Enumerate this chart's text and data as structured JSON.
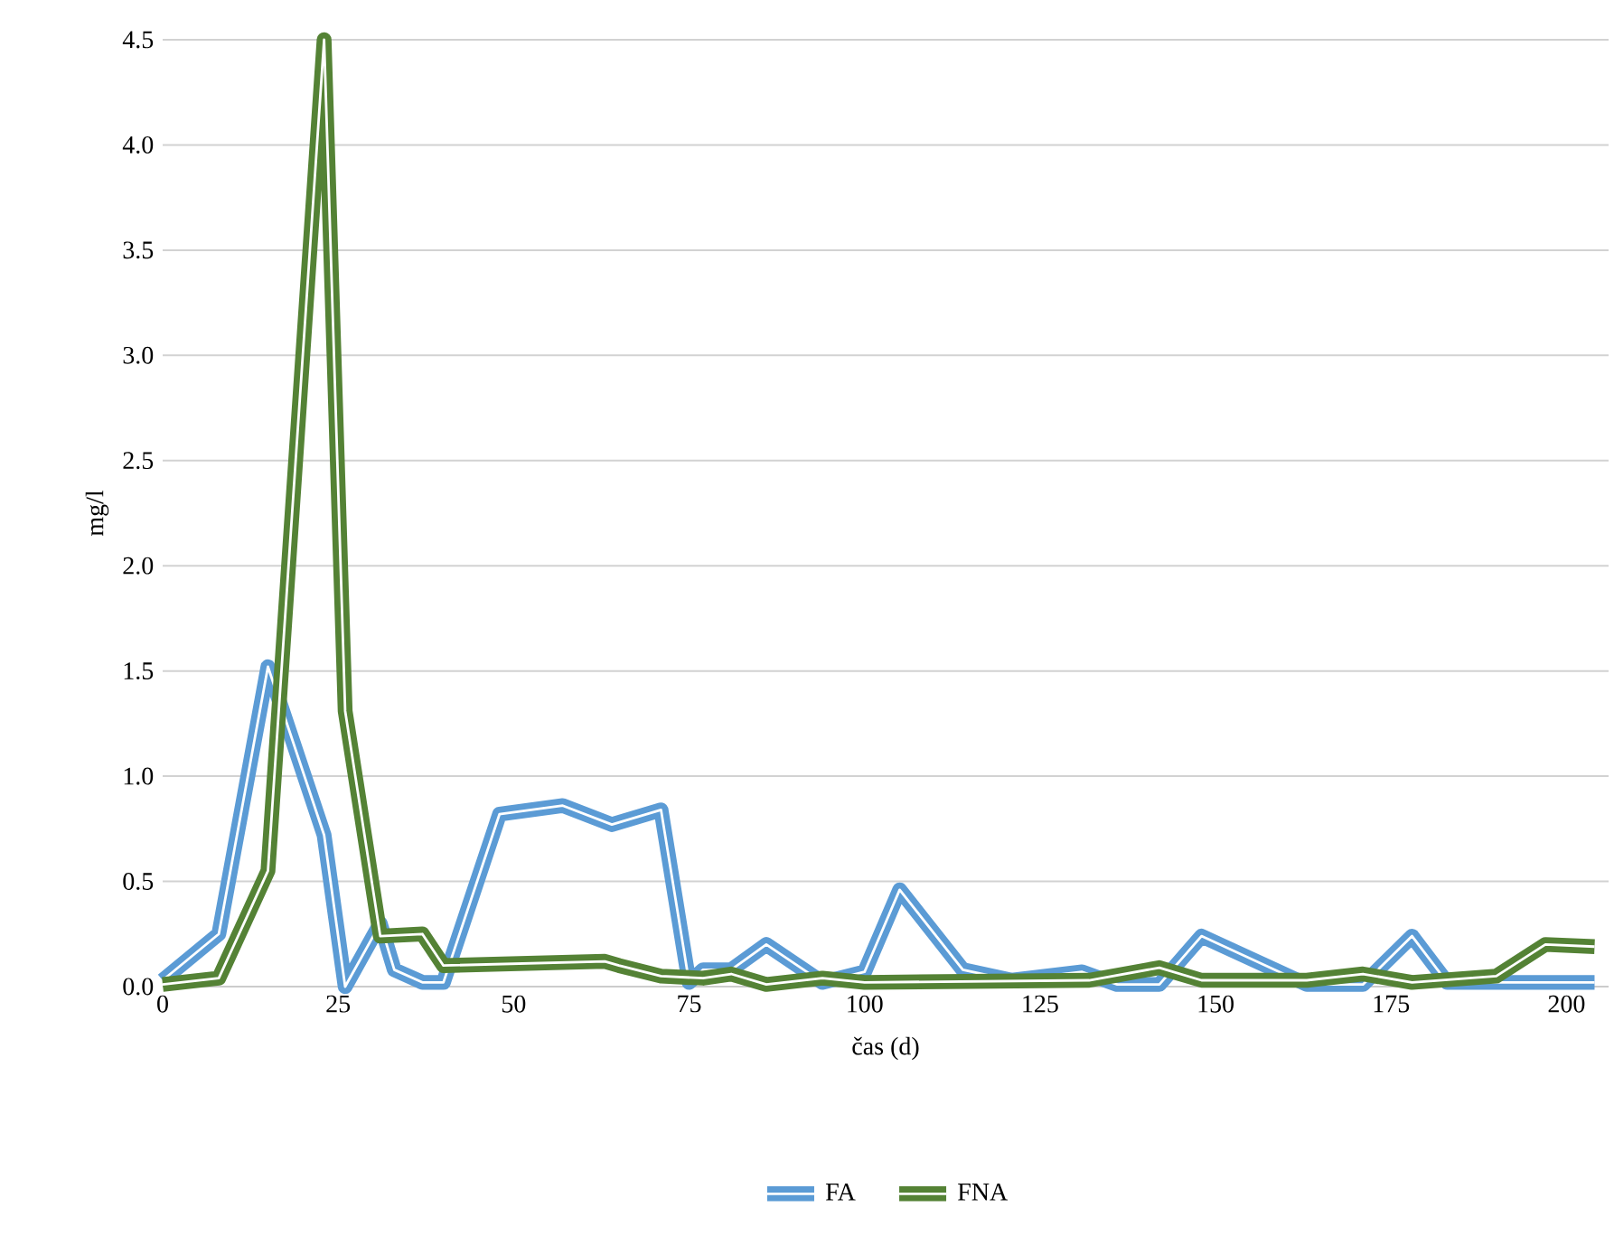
{
  "chart_data": {
    "type": "line",
    "xlabel": "čas (d)",
    "ylabel": "mg/l",
    "xlim": [
      0,
      206
    ],
    "ylim": [
      0,
      4.5
    ],
    "xticks": [
      0,
      25,
      50,
      75,
      100,
      125,
      150,
      175,
      200
    ],
    "yticks": [
      {
        "value": 0,
        "label": "0.0"
      },
      {
        "value": 0.5,
        "label": "0.5"
      },
      {
        "value": 1,
        "label": "1.0"
      },
      {
        "value": 1.5,
        "label": "1.5"
      },
      {
        "value": 2,
        "label": "2.0"
      },
      {
        "value": 2.5,
        "label": "2.5"
      },
      {
        "value": 3,
        "label": "3.0"
      },
      {
        "value": 3.5,
        "label": "3.5"
      },
      {
        "value": 4,
        "label": "4.0"
      },
      {
        "value": 4.5,
        "label": "4.5"
      }
    ],
    "grid": "y",
    "legend": "bottom",
    "marker": "none",
    "line_style": "solid",
    "series": [
      {
        "name": "FA",
        "color": "#5b9bd5",
        "x": [
          0,
          8,
          15,
          23,
          26,
          31,
          33,
          37,
          40,
          48,
          57,
          64,
          71,
          75,
          77,
          81,
          86,
          94,
          100,
          105,
          114,
          121,
          131,
          136,
          142,
          148,
          163,
          171,
          178,
          183,
          204
        ],
        "values": [
          0.03,
          0.25,
          1.52,
          0.72,
          0.0,
          0.3,
          0.08,
          0.02,
          0.02,
          0.82,
          0.86,
          0.77,
          0.84,
          0.02,
          0.08,
          0.08,
          0.2,
          0.02,
          0.07,
          0.46,
          0.08,
          0.03,
          0.07,
          0.01,
          0.01,
          0.24,
          0.01,
          0.01,
          0.24,
          0.02,
          0.02
        ]
      },
      {
        "name": "FNA",
        "color": "#548235",
        "x": [
          0,
          8,
          15,
          23,
          26,
          31,
          37,
          40,
          63,
          65,
          71,
          77,
          81,
          86,
          94,
          100,
          132,
          142,
          148,
          163,
          171,
          178,
          190,
          197,
          204
        ],
        "values": [
          0.01,
          0.04,
          0.55,
          4.5,
          1.31,
          0.24,
          0.25,
          0.1,
          0.12,
          0.1,
          0.05,
          0.04,
          0.06,
          0.01,
          0.04,
          0.02,
          0.03,
          0.09,
          0.03,
          0.03,
          0.06,
          0.02,
          0.05,
          0.2,
          0.19
        ]
      }
    ]
  }
}
